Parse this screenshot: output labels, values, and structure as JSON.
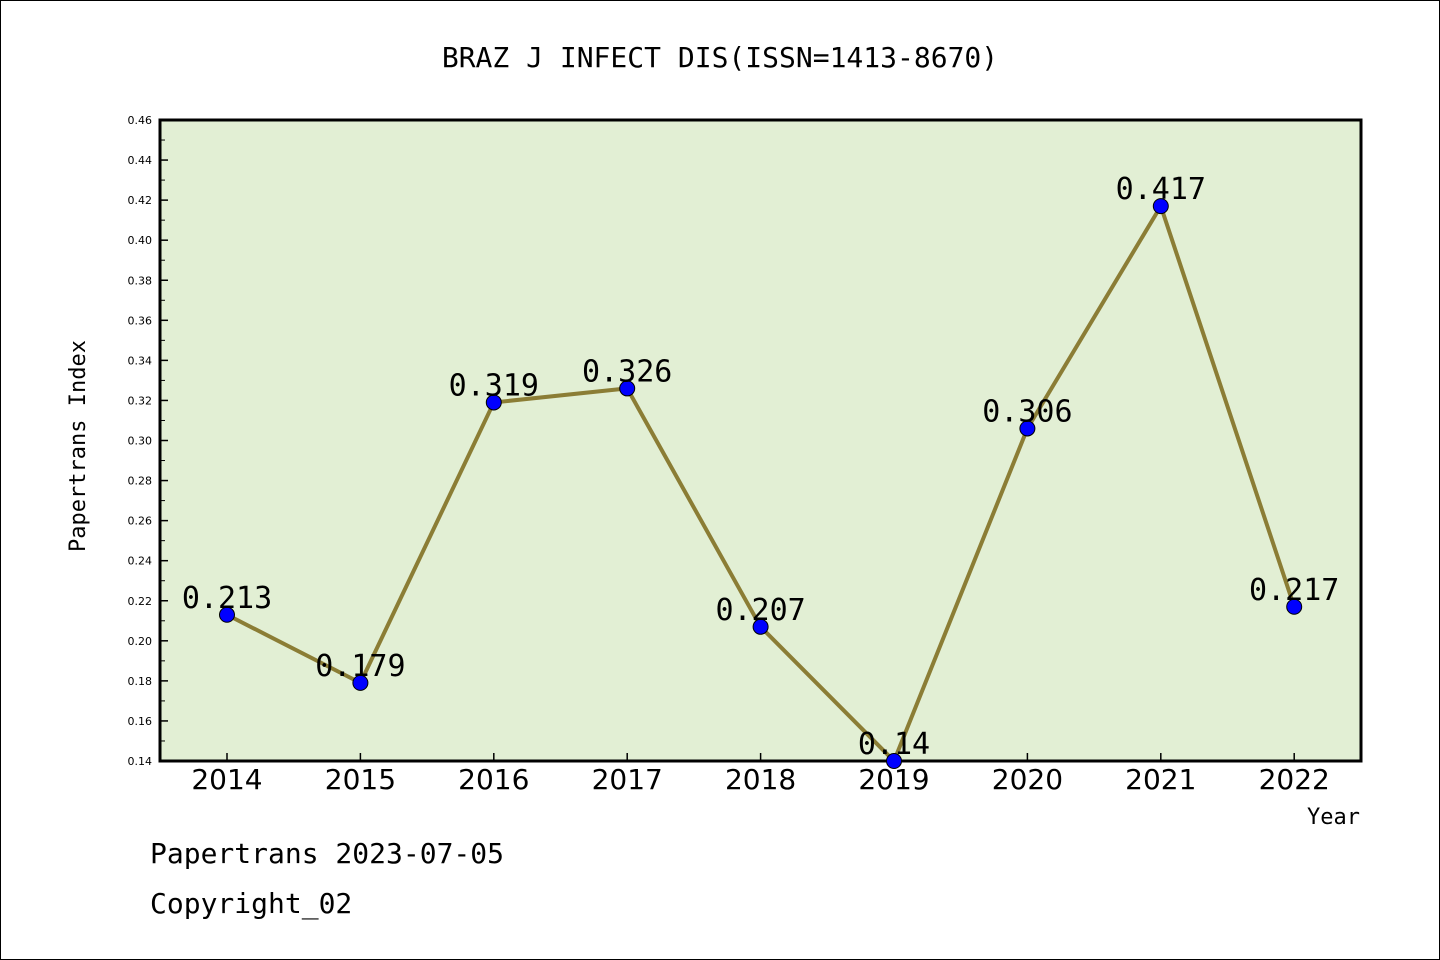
{
  "footer": {
    "line1": "Papertrans 2023-07-05",
    "line2": "Copyright_02"
  },
  "colors": {
    "plot_background": "#e2efd4",
    "line": "#8b7d35",
    "marker": "#0000ff"
  },
  "chart_data": {
    "type": "line",
    "title": "BRAZ J INFECT DIS(ISSN=1413-8670)",
    "xlabel": "Year",
    "ylabel": "Papertrans Index",
    "categories": [
      "2014",
      "2015",
      "2016",
      "2017",
      "2018",
      "2019",
      "2020",
      "2021",
      "2022"
    ],
    "values": [
      0.213,
      0.179,
      0.319,
      0.326,
      0.207,
      0.14,
      0.306,
      0.417,
      0.217
    ],
    "data_labels": [
      "0.213",
      "0.179",
      "0.319",
      "0.326",
      "0.207",
      "0.14",
      "0.306",
      "0.417",
      "0.217"
    ],
    "ylim": [
      0.14,
      0.46
    ],
    "yticks": [
      "0.14",
      "0.16",
      "0.18",
      "0.20",
      "0.22",
      "0.24",
      "0.26",
      "0.28",
      "0.30",
      "0.32",
      "0.34",
      "0.36",
      "0.38",
      "0.40",
      "0.42",
      "0.44",
      "0.46"
    ],
    "grid": false,
    "legend": "none"
  }
}
